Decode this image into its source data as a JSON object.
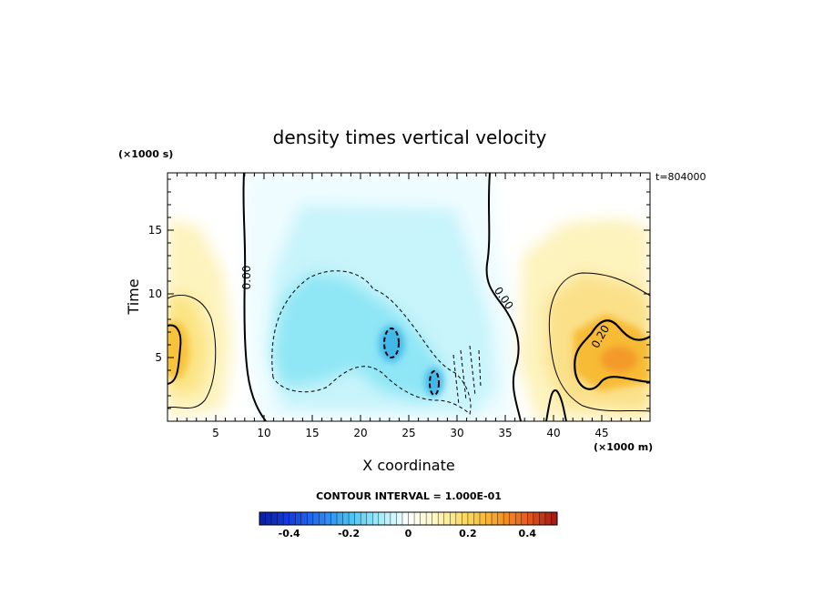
{
  "chart_data": {
    "type": "heatmap",
    "title": "density times vertical velocity",
    "xlabel": "X coordinate",
    "ylabel": "Time",
    "x_unit": "(×1000 m)",
    "y_unit": "(×1000 s)",
    "timestamp": "t=804000",
    "xlim": [
      0,
      50
    ],
    "ylim": [
      0,
      19.5
    ],
    "x_ticks": [
      "5",
      "10",
      "15",
      "20",
      "25",
      "30",
      "35",
      "40",
      "45"
    ],
    "y_ticks": [
      "5",
      "10",
      "15"
    ],
    "contour_interval_label": "CONTOUR INTERVAL = 1.000E-01",
    "contour_labels": [
      "0.00",
      "0.00",
      "0.20"
    ],
    "colorbar": {
      "min": -0.5,
      "max": 0.5,
      "tick_labels": [
        "-0.4",
        "-0.2",
        "0",
        "0.2",
        "0.4"
      ],
      "tick_values": [
        -0.4,
        -0.2,
        0,
        0.2,
        0.4
      ]
    },
    "features": [
      {
        "x": 0,
        "y": 6,
        "value": 0.22
      },
      {
        "x": 2,
        "y": 12,
        "value": 0.05
      },
      {
        "x": 20,
        "y": 7,
        "value": -0.15
      },
      {
        "x": 23,
        "y": 6,
        "value": -0.22
      },
      {
        "x": 27.5,
        "y": 3,
        "value": -0.23
      },
      {
        "x": 46,
        "y": 5,
        "value": 0.25
      },
      {
        "x": 44,
        "y": 12,
        "value": 0.08
      }
    ]
  }
}
